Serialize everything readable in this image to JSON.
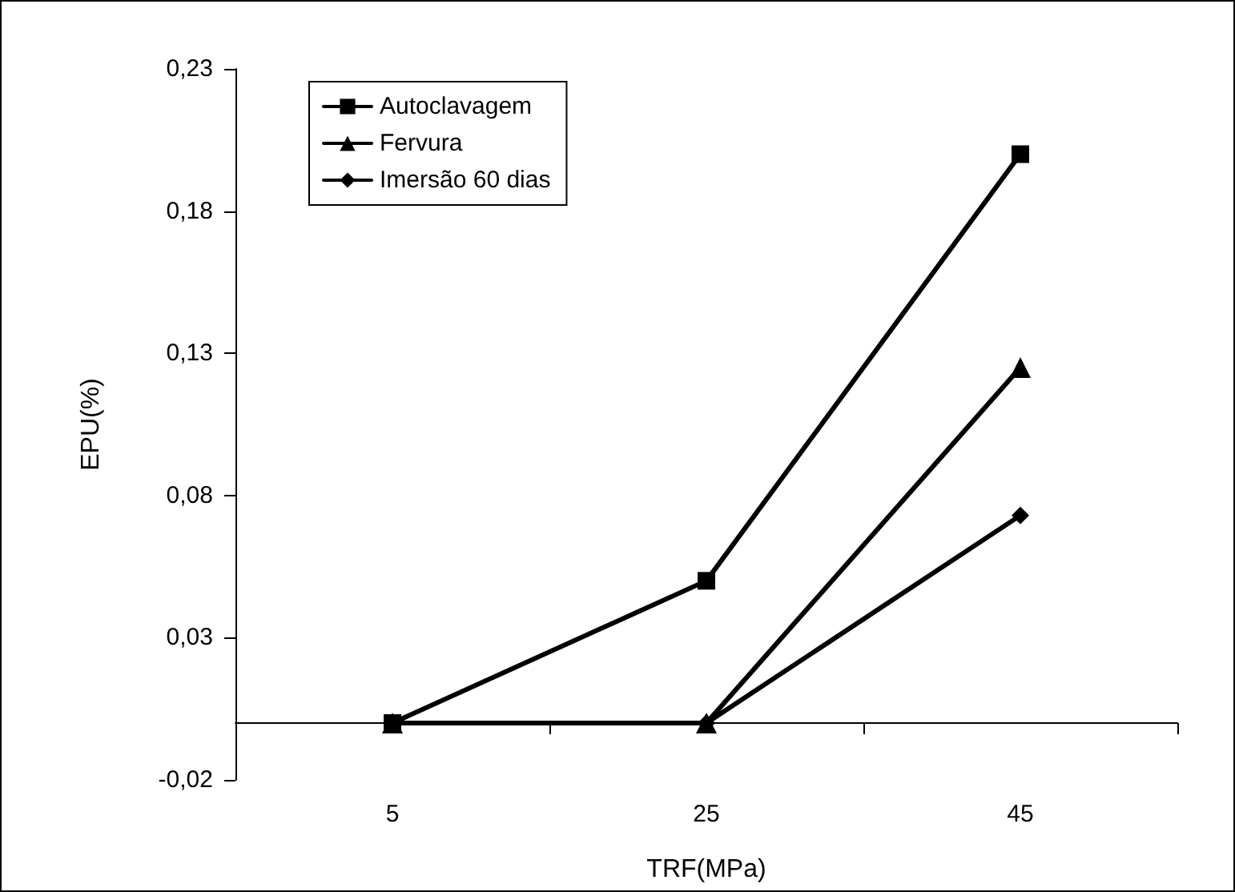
{
  "chart_data": {
    "type": "line",
    "xlabel": "TRF(MPa)",
    "ylabel": "EPU(%)",
    "categories": [
      "5",
      "25",
      "45"
    ],
    "series": [
      {
        "name": "Autoclavagem",
        "color": "#000000",
        "marker": "square",
        "values": [
          0,
          0.05,
          0.2
        ]
      },
      {
        "name": "Fervura",
        "color": "#000000",
        "marker": "triangle",
        "values": [
          0,
          0,
          0.125
        ]
      },
      {
        "name": "Imersão 60 dias",
        "color": "#000000",
        "marker": "diamond",
        "values": [
          0,
          0,
          0.073
        ]
      }
    ],
    "ylim": [
      -0.02,
      0.23
    ],
    "yticks": [
      {
        "value": -0.02,
        "label": "-0,02"
      },
      {
        "value": 0.03,
        "label": "0,03"
      },
      {
        "value": 0.08,
        "label": "0,08"
      },
      {
        "value": 0.13,
        "label": "0,13"
      },
      {
        "value": 0.18,
        "label": "0,18"
      },
      {
        "value": 0.23,
        "label": "0,23"
      }
    ],
    "grid": false,
    "legend": "top left",
    "line_style": "solid"
  }
}
